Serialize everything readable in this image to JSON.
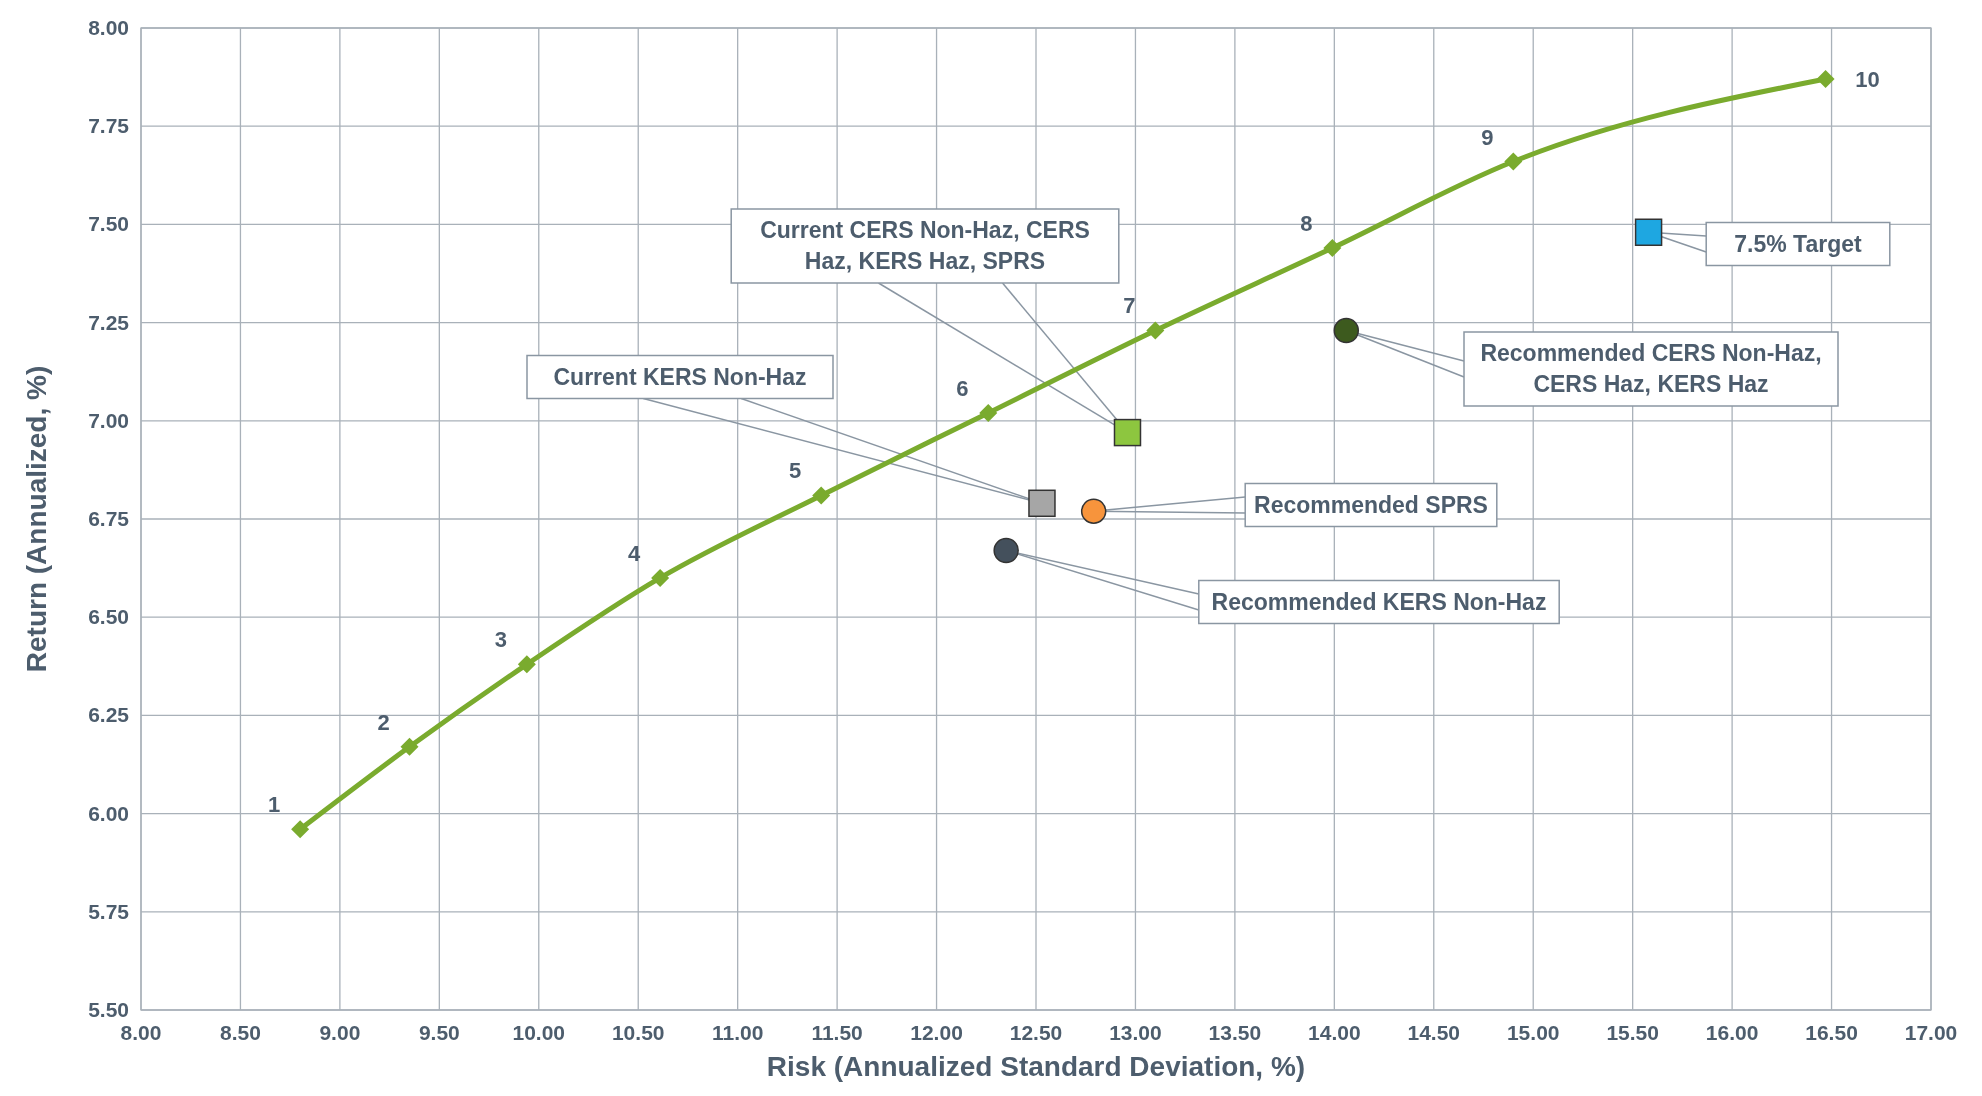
{
  "chart_data": {
    "type": "scatter",
    "xlabel": "Risk (Annualized Standard Deviation, %)",
    "ylabel": "Return (Annualized, %)",
    "xlim": [
      8,
      17
    ],
    "ylim": [
      5.5,
      8
    ],
    "xticks": [
      {
        "value": 8,
        "label": "8.00"
      },
      {
        "value": 8.5,
        "label": "8.50"
      },
      {
        "value": 9,
        "label": "9.00"
      },
      {
        "value": 9.5,
        "label": "9.50"
      },
      {
        "value": 10,
        "label": "10.00"
      },
      {
        "value": 10.5,
        "label": "10.50"
      },
      {
        "value": 11,
        "label": "11.00"
      },
      {
        "value": 11.5,
        "label": "11.50"
      },
      {
        "value": 12,
        "label": "12.00"
      },
      {
        "value": 12.5,
        "label": "12.50"
      },
      {
        "value": 13,
        "label": "13.00"
      },
      {
        "value": 13.5,
        "label": "13.50"
      },
      {
        "value": 14,
        "label": "14.00"
      },
      {
        "value": 14.5,
        "label": "14.50"
      },
      {
        "value": 15,
        "label": "15.00"
      },
      {
        "value": 15.5,
        "label": "15.50"
      },
      {
        "value": 16,
        "label": "16.00"
      },
      {
        "value": 16.5,
        "label": "16.50"
      },
      {
        "value": 17,
        "label": "17.00"
      }
    ],
    "yticks": [
      {
        "value": 5.5,
        "label": "5.50"
      },
      {
        "value": 5.75,
        "label": "5.75"
      },
      {
        "value": 6,
        "label": "6.00"
      },
      {
        "value": 6.25,
        "label": "6.25"
      },
      {
        "value": 6.5,
        "label": "6.50"
      },
      {
        "value": 6.75,
        "label": "6.75"
      },
      {
        "value": 7,
        "label": "7.00"
      },
      {
        "value": 7.25,
        "label": "7.25"
      },
      {
        "value": 7.5,
        "label": "7.50"
      },
      {
        "value": 7.75,
        "label": "7.75"
      },
      {
        "value": 8,
        "label": "8.00"
      }
    ],
    "grid": true,
    "series": [
      {
        "type": "line",
        "marker": "diamond",
        "color": "#7aab2e",
        "x": [
          8.8,
          9.35,
          9.94,
          10.61,
          11.42,
          12.26,
          13.1,
          13.99,
          14.9,
          16.47
        ],
        "values": [
          5.96,
          6.17,
          6.38,
          6.6,
          6.81,
          7.02,
          7.23,
          7.44,
          7.66,
          7.87
        ]
      },
      {
        "marker": "square",
        "color": "#8dc63f",
        "x": [
          12.96
        ],
        "values": [
          6.97
        ]
      },
      {
        "marker": "square",
        "color": "#a6a6a6",
        "x": [
          12.53
        ],
        "values": [
          6.79
        ]
      },
      {
        "marker": "circle",
        "color": "#f7943c",
        "x": [
          12.79
        ],
        "values": [
          6.77
        ]
      },
      {
        "marker": "circle",
        "color": "#44505c",
        "x": [
          12.35
        ],
        "values": [
          6.67
        ]
      },
      {
        "marker": "circle",
        "color": "#3d5a1e",
        "x": [
          14.06
        ],
        "values": [
          7.23
        ]
      },
      {
        "marker": "square",
        "color": "#1ea7e1",
        "x": [
          15.58
        ],
        "values": [
          7.48
        ]
      }
    ],
    "annotations": [
      {
        "text": "Current CERS Non-Haz, CERS Haz, KERS Haz, SPRS",
        "x": 12.96,
        "y": 6.97
      },
      {
        "text": "Current KERS Non-Haz",
        "x": 12.53,
        "y": 6.79
      },
      {
        "text": "Recommended SPRS",
        "x": 12.79,
        "y": 6.77
      },
      {
        "text": "Recommended KERS Non-Haz",
        "x": 12.35,
        "y": 6.67
      },
      {
        "text": "Recommended CERS Non-Haz, CERS Haz, KERS Haz",
        "x": 14.06,
        "y": 7.23
      },
      {
        "text": "7.5% Target",
        "x": 15.58,
        "y": 7.48
      },
      {
        "text": "1",
        "x": 8.8,
        "y": 5.96
      },
      {
        "text": "2",
        "x": 9.35,
        "y": 6.17
      },
      {
        "text": "3",
        "x": 9.94,
        "y": 6.38
      },
      {
        "text": "4",
        "x": 10.61,
        "y": 6.6
      },
      {
        "text": "5",
        "x": 11.42,
        "y": 6.81
      },
      {
        "text": "6",
        "x": 12.26,
        "y": 7.02
      },
      {
        "text": "7",
        "x": 13.1,
        "y": 7.23
      },
      {
        "text": "8",
        "x": 13.99,
        "y": 7.44
      },
      {
        "text": "9",
        "x": 14.9,
        "y": 7.66
      },
      {
        "text": "10",
        "x": 16.47,
        "y": 7.87
      }
    ]
  }
}
